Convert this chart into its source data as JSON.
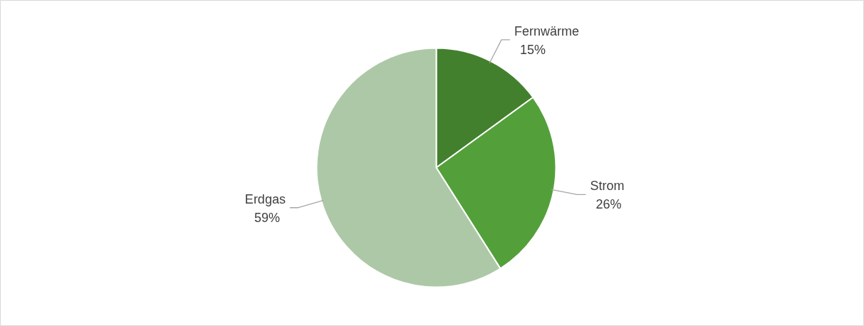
{
  "chart_data": {
    "type": "pie",
    "categories": [
      "Fernwärme",
      "Strom",
      "Erdgas"
    ],
    "values": [
      15,
      26,
      59
    ],
    "colors": [
      "#43802e",
      "#53a03a",
      "#adc8a6"
    ],
    "value_labels": [
      "15%",
      "26%",
      "59%"
    ]
  }
}
